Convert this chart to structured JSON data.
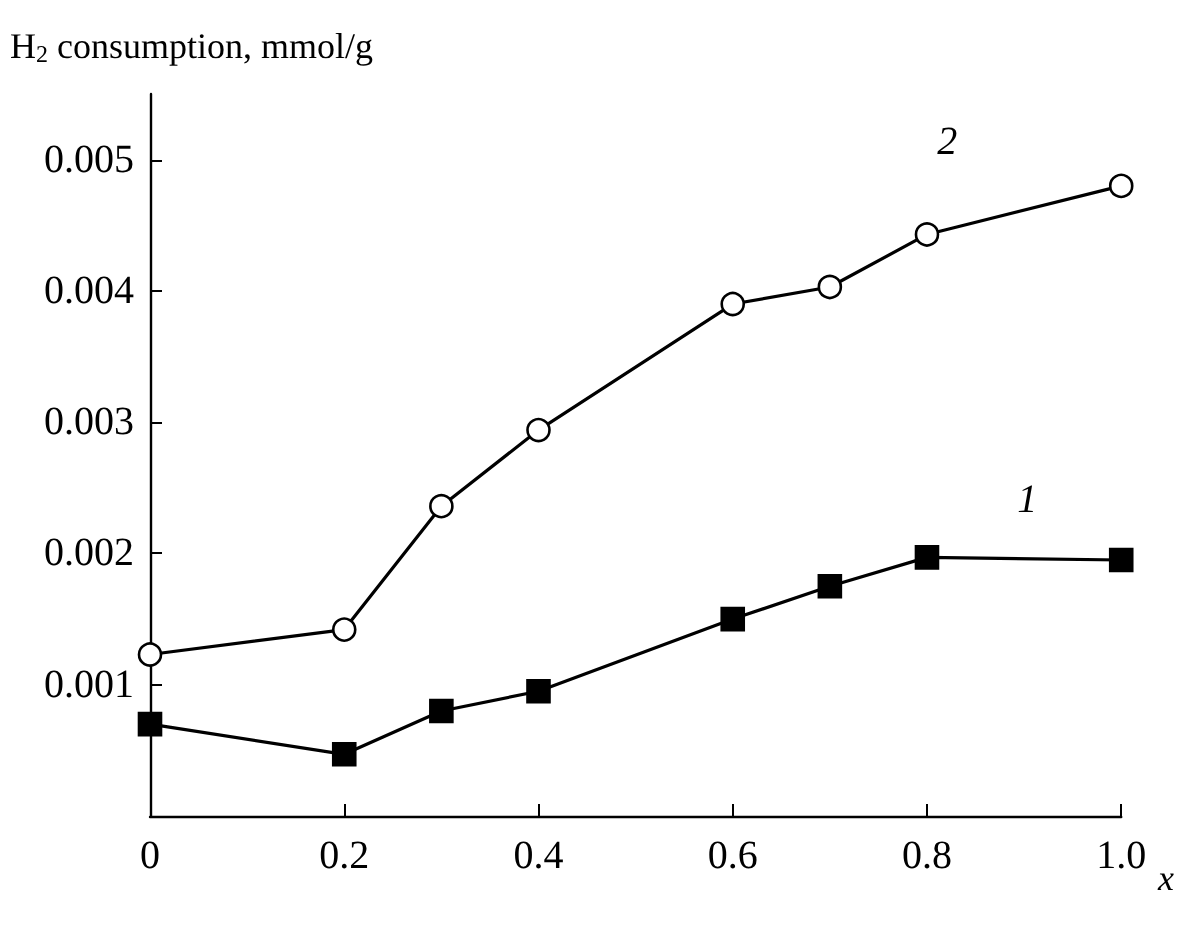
{
  "chart_data": {
    "type": "line",
    "ylabel": "H$_{2}$ consumption, mmol/g",
    "xlabel": "x",
    "x": [
      0,
      0.2,
      0.3,
      0.4,
      0.6,
      0.7,
      0.8,
      1.0
    ],
    "series": [
      {
        "name": "1",
        "color": "#000000",
        "marker": "square",
        "values": [
          0.0007,
          0.00047,
          0.0008,
          0.00095,
          0.0015,
          0.00175,
          0.00197,
          0.00195
        ]
      },
      {
        "name": "2",
        "color": "#000000",
        "marker": "circle",
        "values": [
          0.00123,
          0.00142,
          0.00236,
          0.00294,
          0.0039,
          0.00403,
          0.00443,
          0.0048
        ]
      }
    ],
    "xlim": [
      0,
      1.0
    ],
    "xticks": [
      0,
      {
        "value": 0.2,
        "label": "0.2"
      },
      {
        "value": 0.4,
        "label": "0.4"
      },
      {
        "value": 0.6,
        "label": "0.6"
      },
      {
        "value": 0.8,
        "label": "0.8"
      },
      {
        "value": 1.0,
        "label": "1.0"
      }
    ],
    "ylim": [
      0,
      0.0055
    ],
    "yticks": [
      0.001,
      0.002,
      0.003,
      0.004,
      0.005
    ],
    "grid": false,
    "legend": false,
    "line_style": "solid"
  }
}
